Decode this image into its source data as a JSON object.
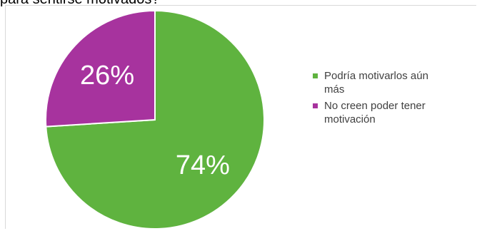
{
  "caption": "para sentirse motivados?",
  "chart_data": {
    "type": "pie",
    "categories": [
      "Podría motivarlos aún más",
      "No creen poder tener motivación"
    ],
    "values": [
      74,
      26
    ],
    "data_labels": [
      "74%",
      "26%"
    ],
    "colors": [
      "#5fb33f",
      "#a7339e"
    ],
    "legend_position": "right"
  },
  "legend": {
    "items": [
      {
        "line1": "Podría motivarlos aún",
        "line2": "más",
        "color": "#5fb33f"
      },
      {
        "line1": "No creen poder tener",
        "line2": "motivación",
        "color": "#a7339e"
      }
    ]
  }
}
